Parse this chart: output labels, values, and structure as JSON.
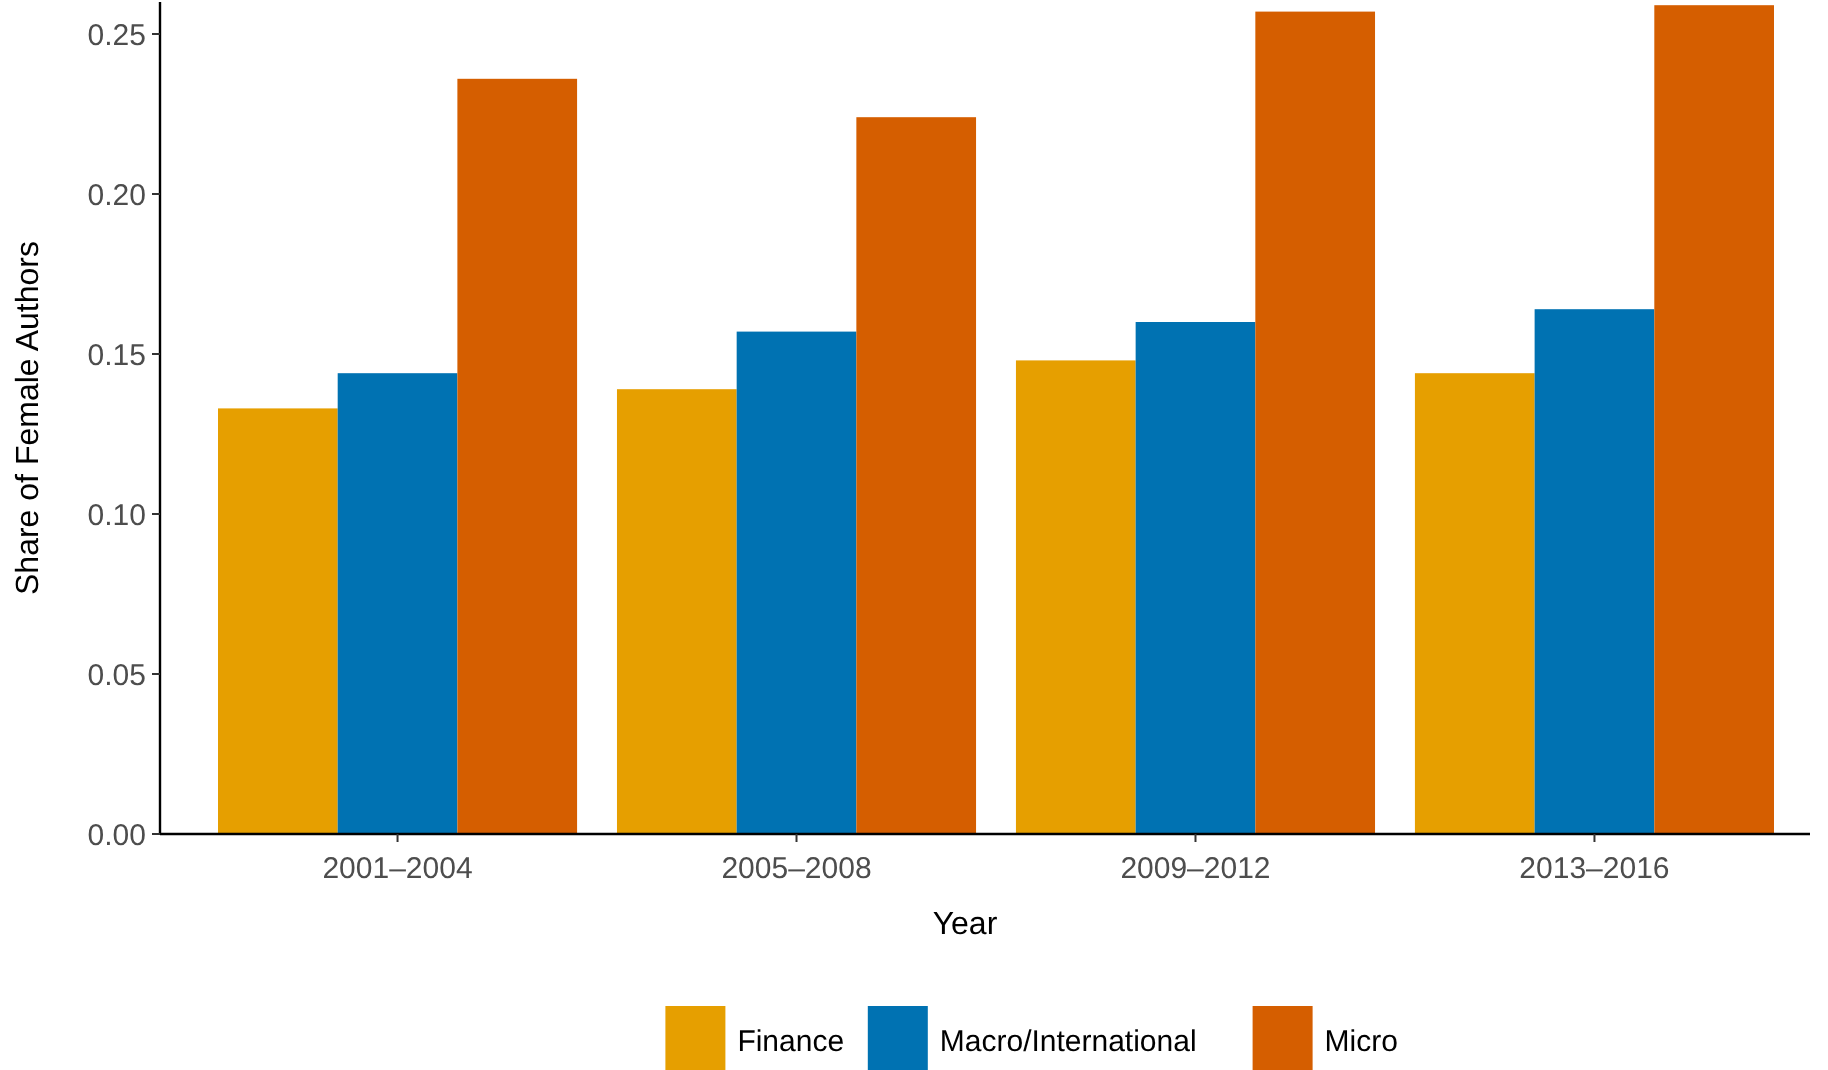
{
  "chart_data": {
    "type": "bar",
    "xlabel": "Year",
    "ylabel": "Share of Female Authors",
    "categories": [
      "2001–2004",
      "2005–2008",
      "2009–2012",
      "2013–2016"
    ],
    "series": [
      {
        "name": "Finance",
        "color": "#e69f00",
        "values": [
          0.133,
          0.139,
          0.148,
          0.144
        ]
      },
      {
        "name": "Macro/International",
        "color": "#0072b2",
        "values": [
          0.144,
          0.157,
          0.16,
          0.164
        ]
      },
      {
        "name": "Micro",
        "color": "#d55e00",
        "values": [
          0.236,
          0.224,
          0.257,
          0.259
        ]
      }
    ],
    "ylim": [
      0,
      0.26
    ],
    "yticks": [
      {
        "value": 0,
        "label": "0.00"
      },
      {
        "value": 0.05,
        "label": "0.05"
      },
      {
        "value": 0.1,
        "label": "0.10"
      },
      {
        "value": 0.15,
        "label": "0.15"
      },
      {
        "value": 0.2,
        "label": "0.20"
      },
      {
        "value": 0.25,
        "label": "0.25"
      }
    ],
    "grid": false,
    "legend": "bottom"
  }
}
